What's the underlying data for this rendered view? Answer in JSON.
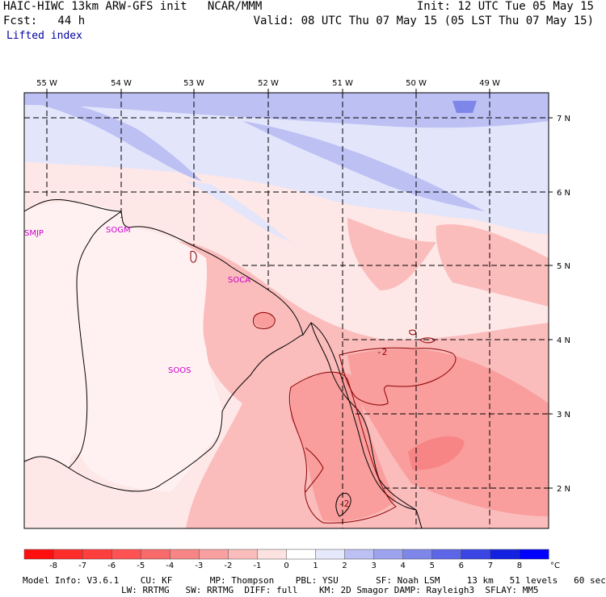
{
  "header": {
    "model_line": "HAIC-HIWC 13km ARW-GFS init   NCAR/MMM",
    "fcst_line": "Fcst:   44 h",
    "field_name": "Lifted index",
    "init_line": "Init: 12 UTC Tue 05 May 15",
    "valid_line": "Valid: 08 UTC Thu 07 May 15 (05 LST Thu 07 May 15)"
  },
  "map": {
    "lon_labels": [
      "55 W",
      "54 W",
      "53 W",
      "52 W",
      "51 W",
      "50 W",
      "49 W"
    ],
    "lat_labels": [
      "7 N",
      "6 N",
      "5 N",
      "4 N",
      "3 N",
      "2 N"
    ],
    "place_labels": [
      "SMJP",
      "SOGM",
      "SOCA",
      "SOOS"
    ],
    "contour_labels": [
      "-2",
      "-2"
    ],
    "colors": {
      "place_label": "#cc00cc",
      "contour": "#8b0000",
      "negative_light": "#fde7e7",
      "positive_light": "#e3e5fb",
      "positive_mid": "#bcc0f3"
    }
  },
  "colorbar": {
    "tick_labels": [
      "-8",
      "-7",
      "-6",
      "-5",
      "-4",
      "-3",
      "-2",
      "-1",
      "0",
      "1",
      "2",
      "3",
      "4",
      "5",
      "6",
      "7",
      "8"
    ],
    "unit": "°C",
    "colors": [
      "#ff0f0f",
      "#ff2c2c",
      "#ff3e3e",
      "#ff5252",
      "#f96b6b",
      "#f78585",
      "#fa9f9f",
      "#fbbcbc",
      "#fde2e2",
      "#ffffff",
      "#e6e8fb",
      "#bcc0f3",
      "#9ea3ee",
      "#7f86e9",
      "#5d66e6",
      "#3a45e4",
      "#1321e0",
      "#0000ff"
    ]
  },
  "footer": {
    "line1": "Model Info: V3.6.1    CU: KF       MP: Thompson    PBL: YSU       SF: Noah LSM     13 km   51 levels   60 sec",
    "line2": "LW: RRTMG   SW: RRTMG  DIFF: full    KM: 2D Smagor DAMP: Rayleigh3  SFLAY: MM5"
  }
}
